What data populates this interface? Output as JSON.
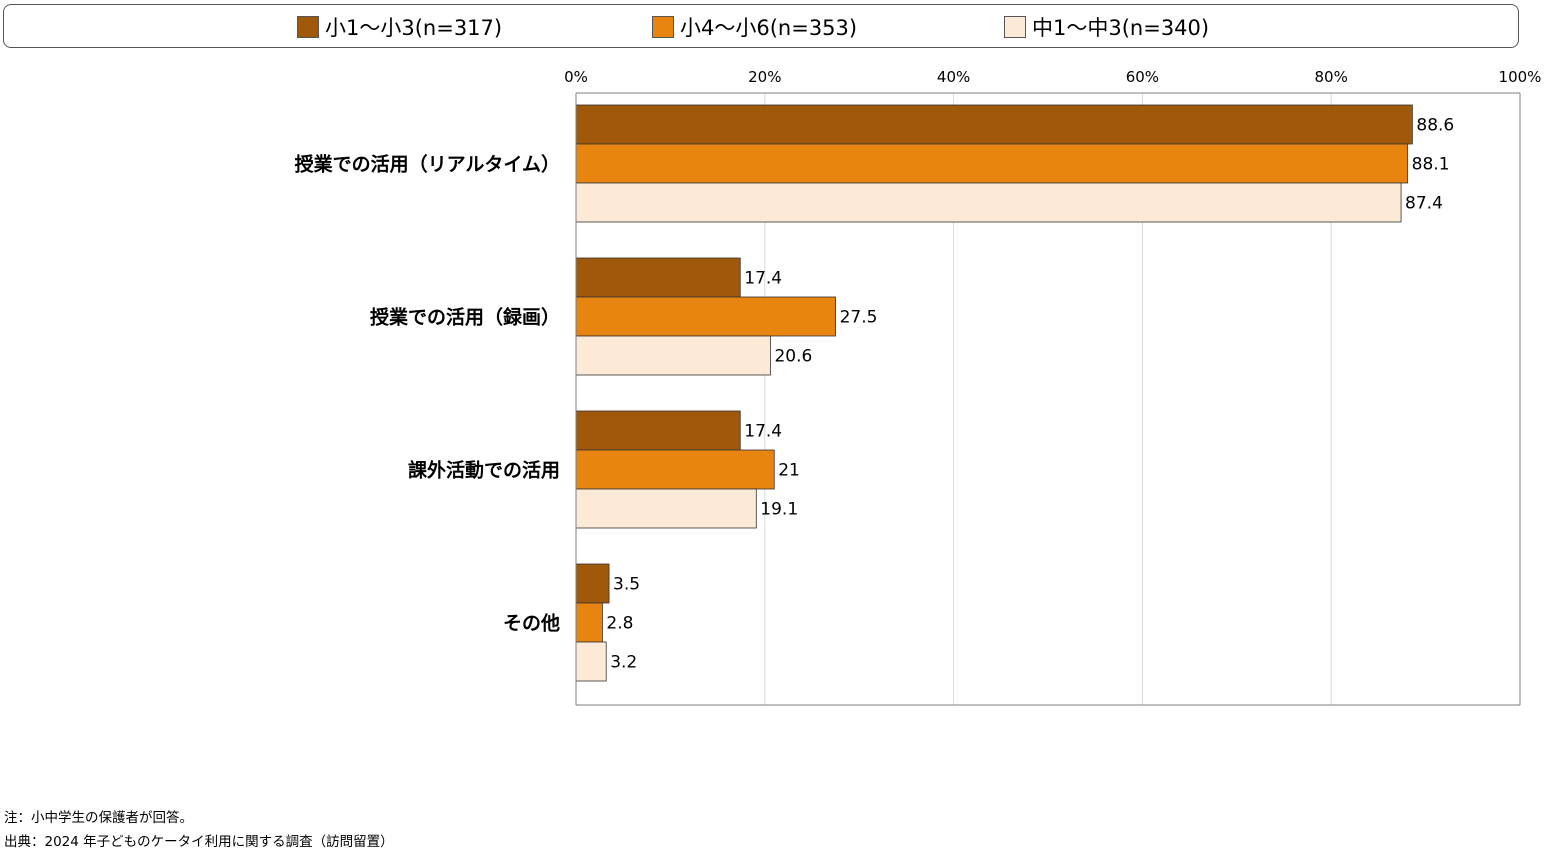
{
  "chart_data": {
    "type": "bar",
    "orientation": "horizontal",
    "categories": [
      "授業での活用（リアルタイム）",
      "授業での活用（録画）",
      "課外活動での活用",
      "その他"
    ],
    "series": [
      {
        "name": "小1〜小3(n=317)",
        "color": "#a0580a",
        "values": [
          88.6,
          17.4,
          17.4,
          3.5
        ],
        "labels": [
          "88.6",
          "17.4",
          "17.4",
          "3.5"
        ]
      },
      {
        "name": "小4〜小6(n=353)",
        "color": "#e88410",
        "values": [
          88.1,
          27.5,
          21,
          2.8
        ],
        "labels": [
          "88.1",
          "27.5",
          "21",
          "2.8"
        ]
      },
      {
        "name": "中1〜中3(n=340)",
        "color": "#fce9d6",
        "values": [
          87.4,
          20.6,
          19.1,
          3.2
        ],
        "labels": [
          "87.4",
          "20.6",
          "19.1",
          "3.2"
        ]
      }
    ],
    "xlim": [
      0,
      100
    ],
    "ticks": [
      0,
      20,
      40,
      60,
      80,
      100
    ],
    "tick_labels": [
      "0%",
      "20%",
      "40%",
      "60%",
      "80%",
      "100%"
    ],
    "grid": true,
    "legend_position": "top"
  },
  "notes": {
    "note": "注：小中学生の保護者が回答。",
    "source": "出典：2024 年子どものケータイ利用に関する調査（訪問留置）"
  }
}
